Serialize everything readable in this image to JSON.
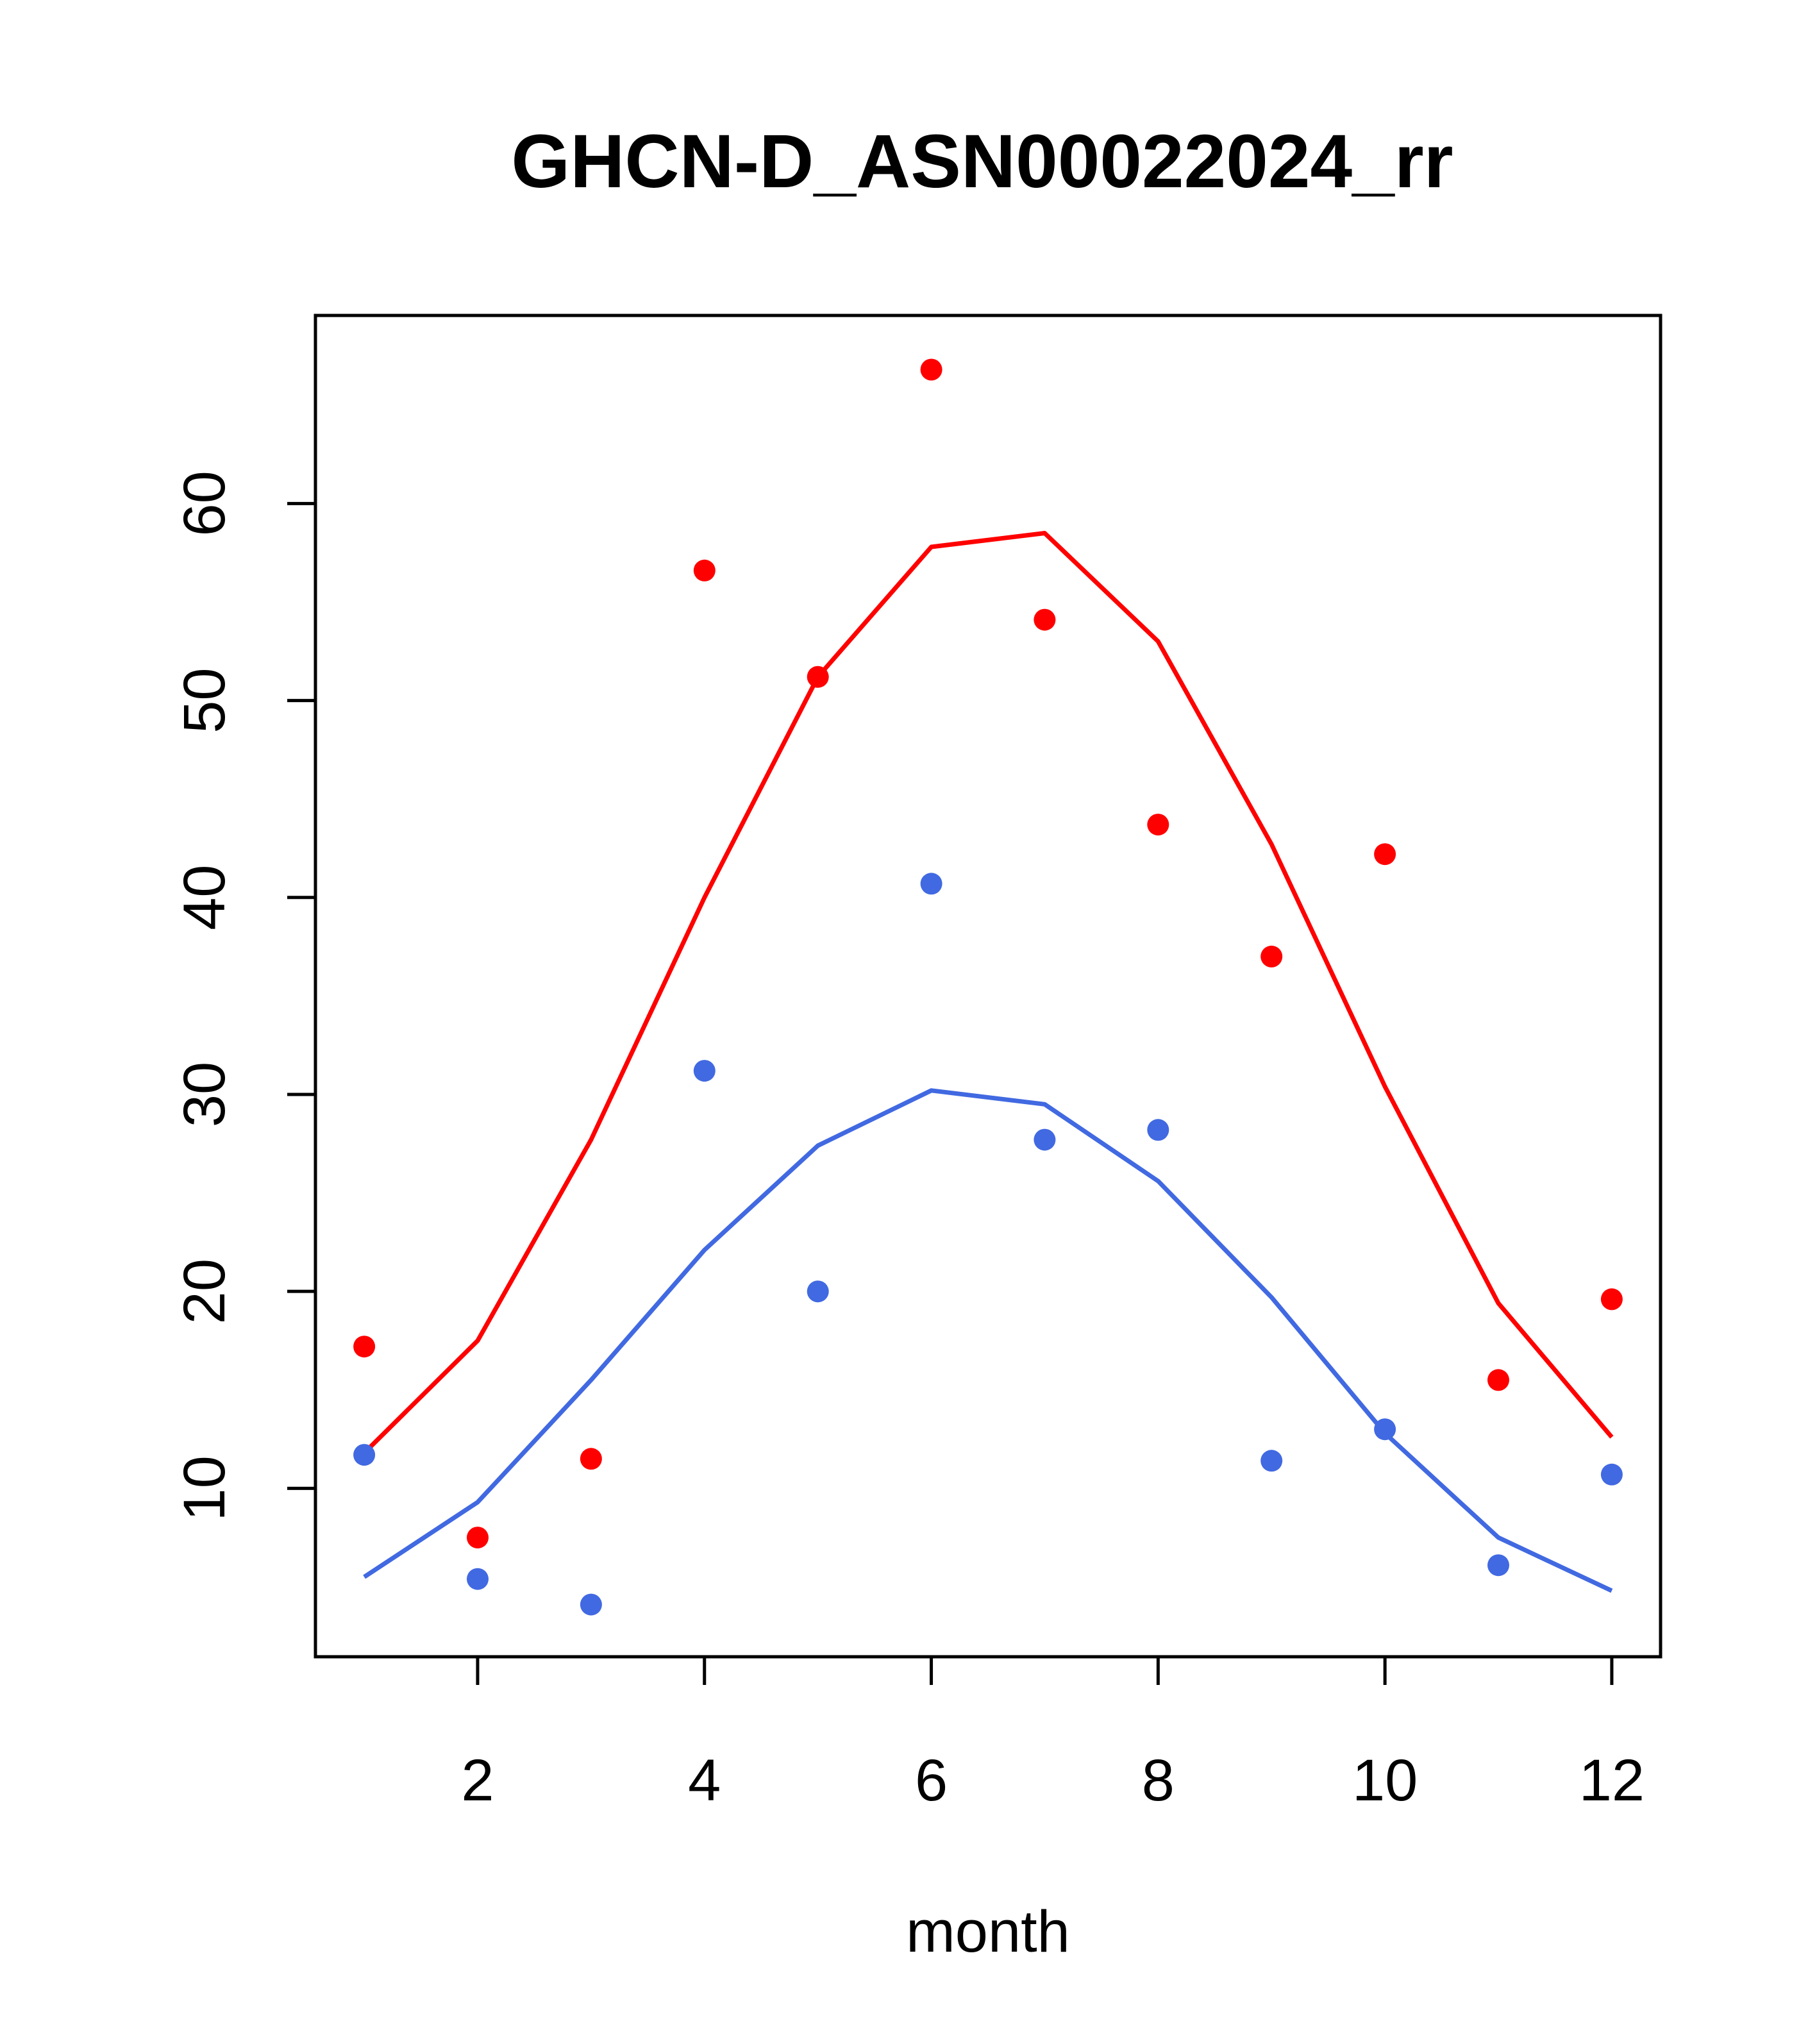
{
  "chart_data": {
    "type": "scatter",
    "title": "GHCN-D_ASN00022024_rr",
    "xlabel": "month",
    "ylabel": "",
    "xlim": [
      0.57,
      12.43
    ],
    "ylim": [
      1.45,
      69.55
    ],
    "x_ticks": [
      2,
      4,
      6,
      8,
      10,
      12
    ],
    "y_ticks": [
      10,
      20,
      30,
      40,
      50,
      60
    ],
    "grid": false,
    "legend": "none",
    "x": [
      1,
      2,
      3,
      4,
      5,
      6,
      7,
      8,
      9,
      10,
      11,
      12
    ],
    "series": [
      {
        "color": "#ff0000",
        "points": [
          17.2,
          7.5,
          11.5,
          56.6,
          51.2,
          66.8,
          54.1,
          43.7,
          37.0,
          42.2,
          15.5,
          19.6
        ],
        "line": [
          11.8,
          17.5,
          27.7,
          40.0,
          51.2,
          57.8,
          58.5,
          53.0,
          42.7,
          30.4,
          19.4,
          12.6
        ]
      },
      {
        "color": "#4169e1",
        "points": [
          11.7,
          5.4,
          4.1,
          31.2,
          20.0,
          40.7,
          27.7,
          28.2,
          11.4,
          13.0,
          6.1,
          10.7
        ],
        "line": [
          5.5,
          9.3,
          15.5,
          22.1,
          27.4,
          30.2,
          29.5,
          25.6,
          19.7,
          12.8,
          7.5,
          4.8
        ]
      }
    ]
  }
}
